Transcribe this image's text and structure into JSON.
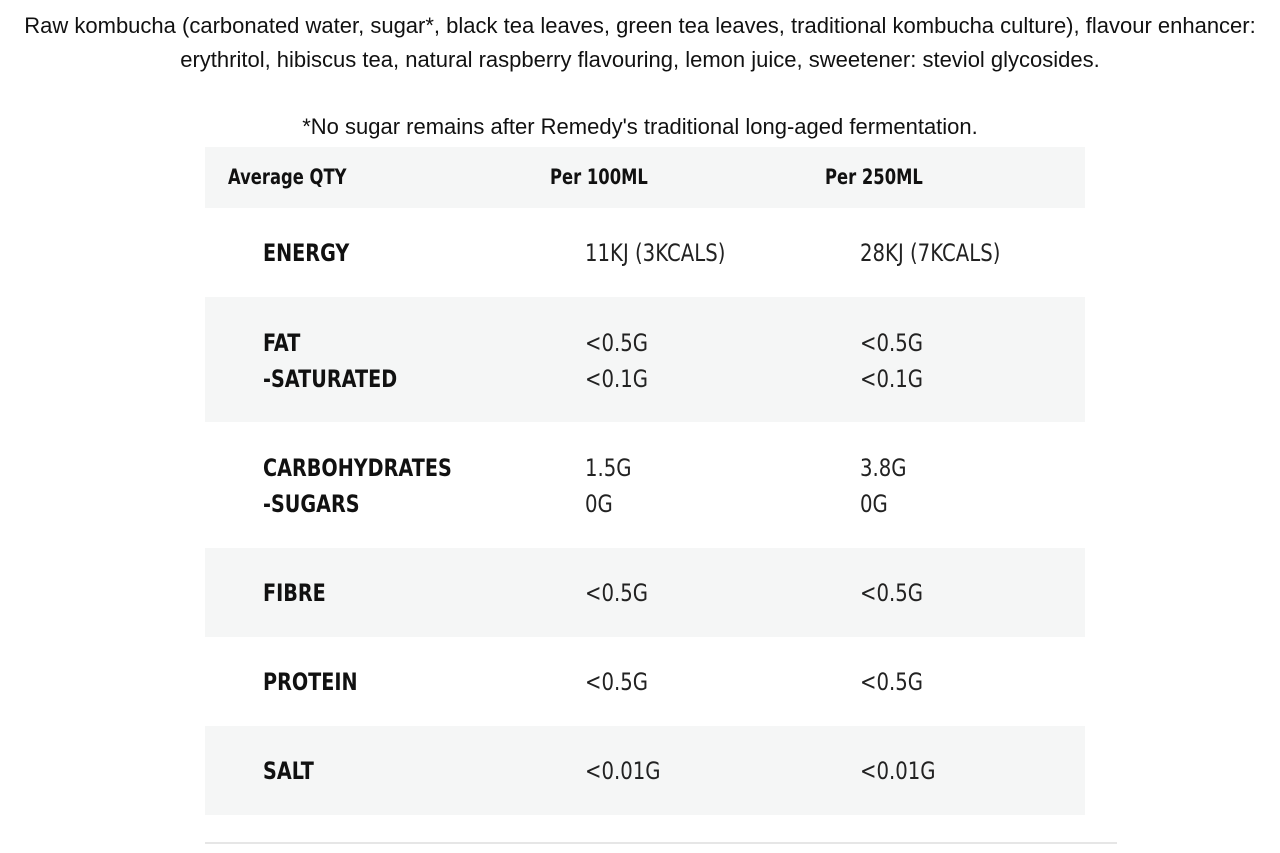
{
  "ingredients": "Raw kombucha (carbonated water, sugar*, black tea leaves, green tea leaves, traditional kombucha culture), flavour enhancer: erythritol, hibiscus tea, natural raspberry flavouring, lemon juice, sweetener: steviol glycosides.",
  "footnote": "*No sugar remains after Remedy's traditional long-aged fermentation.",
  "table": {
    "headers": [
      "Average QTY",
      "Per 100ML",
      "Per 250ML"
    ],
    "rows": [
      {
        "label": "ENERGY",
        "per100": "11KJ (3KCALS)",
        "per250": "28KJ (7KCALS)"
      },
      {
        "label": "FAT",
        "per100": "<0.5G",
        "per250": "<0.5G",
        "sub_label": "-SATURATED",
        "sub_per100": "<0.1G",
        "sub_per250": "<0.1G"
      },
      {
        "label": "CARBOHYDRATES",
        "per100": "1.5G",
        "per250": "3.8G",
        "sub_label": "-SUGARS",
        "sub_per100": "0G",
        "sub_per250": "0G"
      },
      {
        "label": "FIBRE",
        "per100": "<0.5G",
        "per250": "<0.5G"
      },
      {
        "label": "PROTEIN",
        "per100": "<0.5G",
        "per250": "<0.5G"
      },
      {
        "label": "SALT",
        "per100": "<0.01G",
        "per250": "<0.01G"
      }
    ]
  }
}
